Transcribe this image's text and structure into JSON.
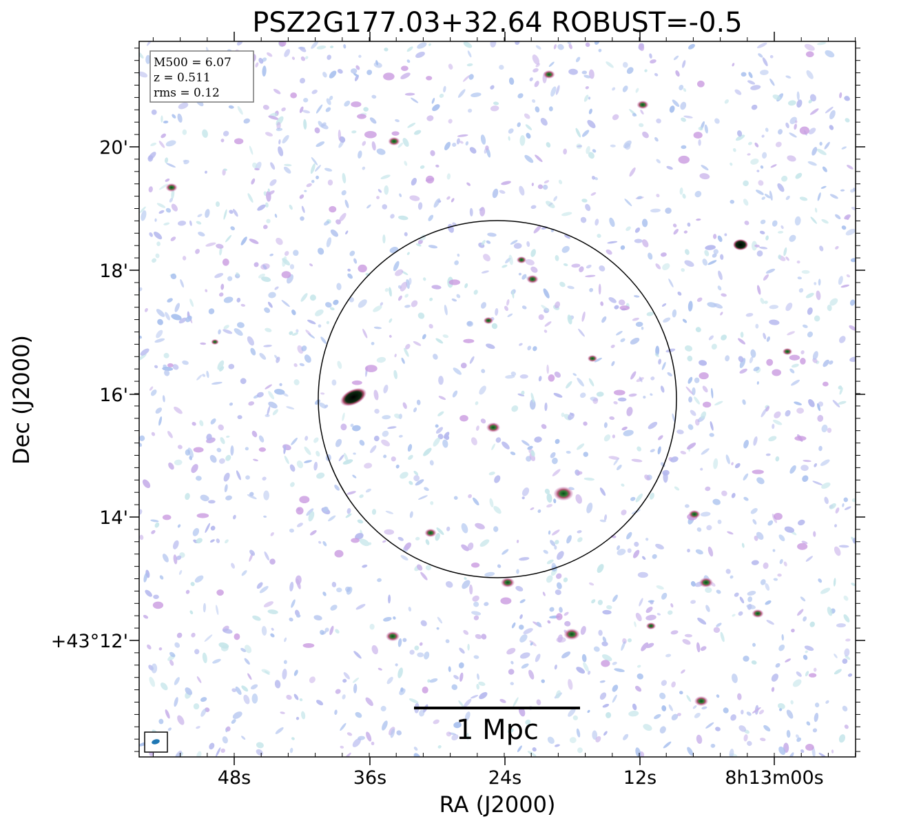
{
  "title": "PSZ2G177.03+32.64 ROBUST=-0.5",
  "x_axis": {
    "label": "RA (J2000)",
    "ticks": [
      "48s",
      "36s",
      "24s",
      "12s",
      "8h13m00s"
    ]
  },
  "y_axis": {
    "label": "Dec (J2000)",
    "ticks": [
      "20'",
      "18'",
      "16'",
      "14'",
      "+43°12'"
    ]
  },
  "info_box": [
    "M500 = 6.07",
    "z = 0.511",
    "rms = 0.12"
  ],
  "scale_bar": "1 Mpc"
}
